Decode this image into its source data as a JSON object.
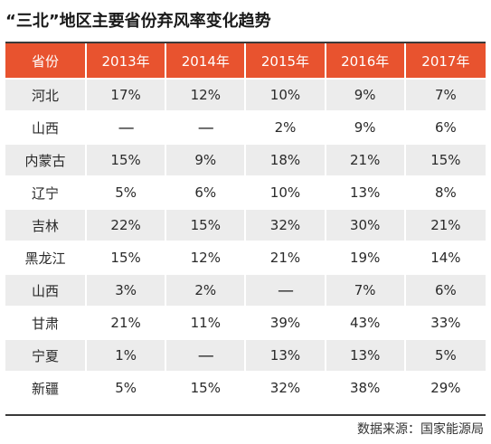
{
  "chart_data": {
    "type": "table",
    "title": "“三北”地区主要省份弃风率变化趋势",
    "columns": [
      "省份",
      "2013年",
      "2014年",
      "2015年",
      "2016年",
      "2017年"
    ],
    "rows": [
      [
        "河北",
        "17%",
        "12%",
        "10%",
        "9%",
        "7%"
      ],
      [
        "山西",
        "—",
        "—",
        "2%",
        "9%",
        "6%"
      ],
      [
        "内蒙古",
        "15%",
        "9%",
        "18%",
        "21%",
        "15%"
      ],
      [
        "辽宁",
        "5%",
        "6%",
        "10%",
        "13%",
        "8%"
      ],
      [
        "吉林",
        "22%",
        "15%",
        "32%",
        "30%",
        "21%"
      ],
      [
        "黑龙江",
        "15%",
        "12%",
        "21%",
        "19%",
        "14%"
      ],
      [
        "山西",
        "3%",
        "2%",
        "—",
        "7%",
        "6%"
      ],
      [
        "甘肃",
        "21%",
        "11%",
        "39%",
        "43%",
        "33%"
      ],
      [
        "宁夏",
        "1%",
        "—",
        "13%",
        "13%",
        "5%"
      ],
      [
        "新疆",
        "5%",
        "15%",
        "32%",
        "38%",
        "29%"
      ]
    ],
    "source": "数据来源：国家能源局",
    "colors": {
      "header_background": "#e8532f",
      "header_text": "#ffffff",
      "stripe": "#ececec",
      "text": "#2a2a2a"
    }
  }
}
